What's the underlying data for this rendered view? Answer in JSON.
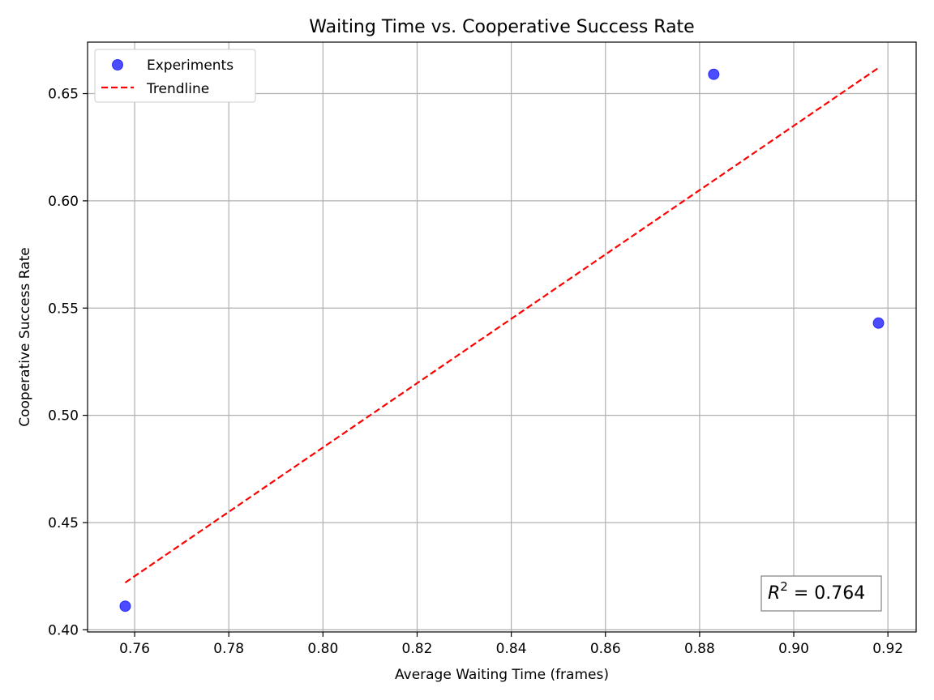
{
  "chart_data": {
    "type": "scatter",
    "title": "Waiting Time vs. Cooperative Success Rate",
    "xlabel": "Average Waiting Time (frames)",
    "ylabel": "Cooperative Success Rate",
    "xlim": [
      0.75,
      0.926
    ],
    "ylim": [
      0.399,
      0.674
    ],
    "xticks": [
      "0.76",
      "0.78",
      "0.80",
      "0.82",
      "0.84",
      "0.86",
      "0.88",
      "0.90",
      "0.92"
    ],
    "yticks": [
      "0.40",
      "0.45",
      "0.50",
      "0.55",
      "0.60",
      "0.65"
    ],
    "grid": true,
    "legend_position": "top-left",
    "series": [
      {
        "name": "Experiments",
        "kind": "scatter",
        "color": "#0000ff",
        "points": [
          {
            "x": 0.758,
            "y": 0.411
          },
          {
            "x": 0.883,
            "y": 0.659
          },
          {
            "x": 0.918,
            "y": 0.543
          }
        ]
      },
      {
        "name": "Trendline",
        "kind": "line",
        "style": "dashed",
        "color": "#ff0000",
        "points": [
          {
            "x": 0.758,
            "y": 0.422
          },
          {
            "x": 0.918,
            "y": 0.662
          }
        ]
      }
    ],
    "annotation": {
      "base": "R",
      "superscript": "2",
      "rest": " = 0.764",
      "position": "bottom-right"
    }
  }
}
